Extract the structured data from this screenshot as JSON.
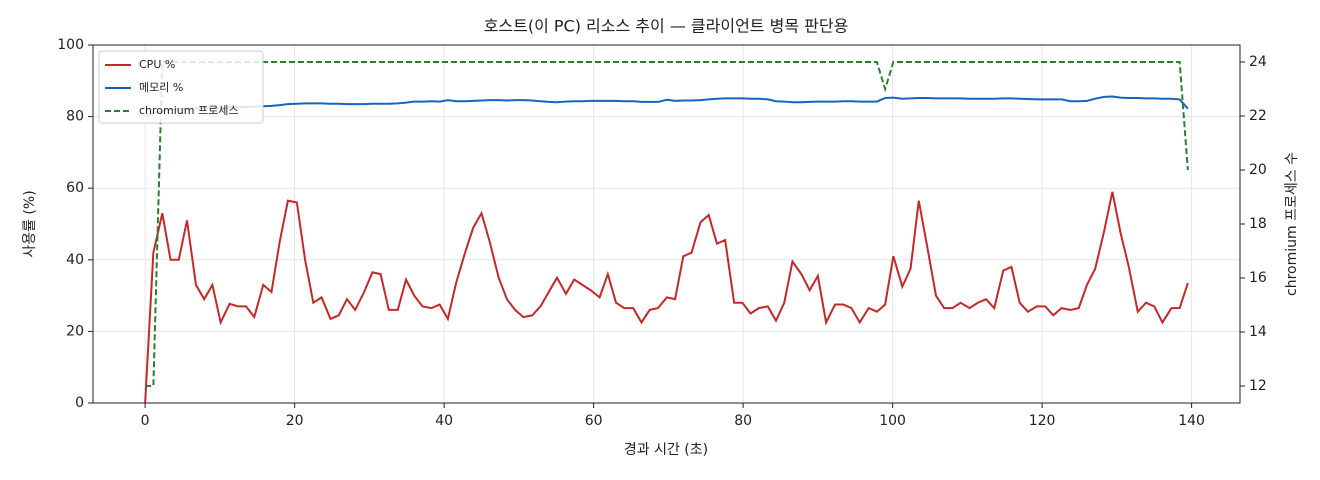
{
  "chart_data": {
    "type": "line",
    "title": "호스트(이 PC) 리소스 추이 — 클라이언트 병목 판단용",
    "xlabel": "경과 시간 (초)",
    "ylabel": "사용률 (%)",
    "y2label": "chromium 프로세스 수",
    "x": [
      0,
      1.1,
      2.3,
      3.4,
      4.5,
      5.6,
      6.8,
      7.9,
      9,
      10.1,
      11.3,
      12.4,
      13.5,
      14.6,
      15.8,
      16.9,
      18,
      19.1,
      20.3,
      21.4,
      22.5,
      23.6,
      24.8,
      25.9,
      27,
      28.1,
      29.3,
      30.4,
      31.5,
      32.6,
      33.8,
      34.9,
      36,
      37.1,
      38.3,
      39.4,
      40.5,
      41.6,
      42.8,
      43.9,
      45,
      46.1,
      47.3,
      48.4,
      49.5,
      50.6,
      51.8,
      52.9,
      54,
      55.1,
      56.3,
      57.4,
      58.5,
      59.6,
      60.8,
      61.9,
      63,
      64.1,
      65.3,
      66.4,
      67.5,
      68.6,
      69.8,
      70.9,
      72,
      73.1,
      74.3,
      75.4,
      76.5,
      77.6,
      78.8,
      79.9,
      81,
      82.1,
      83.3,
      84.4,
      85.5,
      86.6,
      87.8,
      88.9,
      90,
      91.1,
      92.3,
      93.4,
      94.5,
      95.6,
      96.8,
      97.9,
      99,
      100.1,
      101.3,
      102.4,
      103.5,
      104.6,
      105.8,
      106.9,
      108,
      109.1,
      110.3,
      111.4,
      112.5,
      113.6,
      114.8,
      115.9,
      117,
      118.1,
      119.3,
      120.4,
      121.5,
      122.6,
      123.8,
      124.9,
      126,
      127.1,
      128.3,
      129.4,
      130.5,
      131.6,
      132.8,
      133.9,
      135,
      136.1,
      137.3,
      138.4,
      139.5
    ],
    "series": [
      {
        "name": "CPU %",
        "color": "#c62828",
        "linestyle": "solid",
        "values": [
          0,
          42,
          53,
          40,
          40,
          51,
          33,
          29,
          33,
          22.5,
          27.7,
          27,
          27,
          24,
          33,
          31,
          45,
          56.5,
          56,
          40,
          28,
          29.5,
          23.5,
          24.5,
          29,
          26,
          31,
          36.5,
          36,
          26,
          26,
          34.5,
          30,
          27,
          26.5,
          27.5,
          23.5,
          33.5,
          42,
          49,
          53,
          45,
          35,
          29,
          26,
          24,
          24.5,
          27,
          31,
          35,
          30.5,
          34.5,
          33,
          31.5,
          29.5,
          36,
          28,
          26.5,
          26.5,
          22.5,
          26,
          26.5,
          29.5,
          29,
          41,
          42,
          50.5,
          52.5,
          44.5,
          45.5,
          28,
          28,
          25,
          26.5,
          27,
          23,
          28,
          39.5,
          36,
          31.5,
          35.5,
          22.5,
          27.5,
          27.5,
          26.5,
          22.5,
          26.5,
          25.5,
          27.5,
          41,
          32.5,
          37.5,
          56.5,
          44,
          30,
          26.5,
          26.5,
          28,
          26.5,
          28,
          29,
          26.5,
          37,
          38,
          28,
          25.5,
          27,
          27,
          24.5,
          26.5,
          26,
          26.5,
          33,
          37.5,
          48,
          59,
          47.5,
          38,
          25.5,
          28,
          27,
          22.5,
          26.5,
          26.5,
          33.5
        ]
      },
      {
        "name": "메모리 %",
        "color": "#1565c0",
        "linestyle": "solid",
        "values": [
          80,
          81,
          81.5,
          82,
          82,
          82.2,
          82.3,
          82.4,
          82.5,
          82.5,
          82.5,
          82.6,
          82.7,
          82.8,
          82.9,
          83,
          83.2,
          83.5,
          83.6,
          83.7,
          83.7,
          83.7,
          83.6,
          83.6,
          83.5,
          83.5,
          83.5,
          83.6,
          83.6,
          83.6,
          83.7,
          83.9,
          84.2,
          84.2,
          84.3,
          84.2,
          84.6,
          84.3,
          84.3,
          84.4,
          84.5,
          84.6,
          84.6,
          84.5,
          84.6,
          84.6,
          84.5,
          84.3,
          84.1,
          84,
          84.2,
          84.3,
          84.3,
          84.4,
          84.4,
          84.4,
          84.4,
          84.3,
          84.3,
          84.1,
          84.1,
          84.1,
          84.7,
          84.4,
          84.5,
          84.5,
          84.6,
          84.8,
          85,
          85.1,
          85.1,
          85.1,
          85,
          85,
          84.8,
          84.3,
          84.2,
          84,
          84,
          84.1,
          84.2,
          84.2,
          84.2,
          84.3,
          84.3,
          84.2,
          84.2,
          84.2,
          85.2,
          85.3,
          85,
          85.1,
          85.2,
          85.2,
          85.1,
          85.1,
          85.1,
          85.1,
          85,
          85,
          85,
          85,
          85.1,
          85.1,
          85,
          84.9,
          84.8,
          84.8,
          84.8,
          84.8,
          84.3,
          84.3,
          84.4,
          85,
          85.5,
          85.6,
          85.3,
          85.2,
          85.2,
          85.1,
          85.1,
          85,
          85,
          84.8,
          82.2
        ]
      },
      {
        "name": "chromium 프로세스",
        "color": "#2e7d32",
        "linestyle": "dashed",
        "axis": "y2",
        "values": [
          12,
          12,
          24,
          24,
          24,
          24,
          24,
          24,
          24,
          24,
          24,
          24,
          24,
          24,
          24,
          24,
          24,
          24,
          24,
          24,
          24,
          24,
          24,
          24,
          24,
          24,
          24,
          24,
          24,
          24,
          24,
          24,
          24,
          24,
          24,
          24,
          24,
          24,
          24,
          24,
          24,
          24,
          24,
          24,
          24,
          24,
          24,
          24,
          24,
          24,
          24,
          24,
          24,
          24,
          24,
          24,
          24,
          24,
          24,
          24,
          24,
          24,
          24,
          24,
          24,
          24,
          24,
          24,
          24,
          24,
          24,
          24,
          24,
          24,
          24,
          24,
          24,
          24,
          24,
          24,
          24,
          24,
          24,
          24,
          24,
          24,
          24,
          24,
          23,
          24,
          24,
          24,
          24,
          24,
          24,
          24,
          24,
          24,
          24,
          24,
          24,
          24,
          24,
          24,
          24,
          24,
          24,
          24,
          24,
          24,
          24,
          24,
          24,
          24,
          24,
          24,
          24,
          24,
          24,
          24,
          24,
          24,
          24,
          24,
          20
        ]
      }
    ],
    "xlim": [
      -6.975,
      146.475
    ],
    "xticks": [
      0,
      20,
      40,
      60,
      80,
      100,
      120,
      140
    ],
    "ylim": [
      0,
      100
    ],
    "yticks": [
      0,
      20,
      40,
      60,
      80,
      100
    ],
    "y2lim": [
      11.37,
      24.63
    ],
    "y2ticks": [
      12,
      14,
      16,
      18,
      20,
      22,
      24
    ],
    "grid": true,
    "legend": "upper left"
  }
}
